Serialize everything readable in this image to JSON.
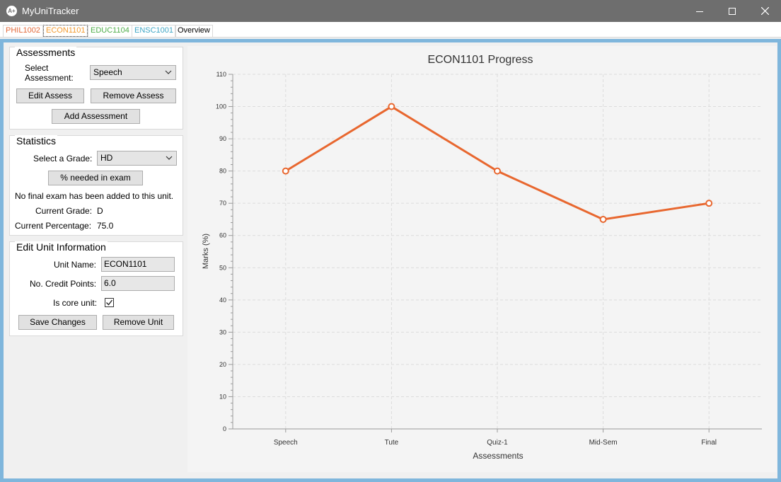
{
  "window": {
    "title": "MyUniTracker",
    "icon_text": "A+"
  },
  "tabs": [
    {
      "label": "PHIL1002",
      "color": "#e3693a"
    },
    {
      "label": "ECON1101",
      "color": "#f29a2e"
    },
    {
      "label": "EDUC1104",
      "color": "#4fae4a"
    },
    {
      "label": "ENSC1001",
      "color": "#3fa6c5"
    },
    {
      "label": "Overview",
      "color": "#000000"
    }
  ],
  "accent_color": "#7fb6dc",
  "assessments": {
    "title": "Assessments",
    "select_label": "Select\nAssessment:",
    "selected": "Speech",
    "edit_label": "Edit Assess",
    "remove_label": "Remove Assess",
    "add_label": "Add Assessment"
  },
  "statistics": {
    "title": "Statistics",
    "grade_label": "Select a Grade:",
    "grade_selected": "HD",
    "needed_label": "% needed in exam",
    "message": "No final exam has been added to this unit.",
    "current_grade_label": "Current Grade:",
    "current_grade": "D",
    "current_pct_label": "Current Percentage:",
    "current_pct": "75.0"
  },
  "unit_info": {
    "title": "Edit Unit Information",
    "name_label": "Unit Name:",
    "name_value": "ECON1101",
    "credits_label": "No. Credit Points:",
    "credits_value": "6.0",
    "core_label": "Is core unit:",
    "is_core": true,
    "save_label": "Save Changes",
    "remove_label": "Remove Unit"
  },
  "chart_data": {
    "type": "line",
    "title": "ECON1101 Progress",
    "xlabel": "Assessments",
    "ylabel": "Marks (%)",
    "categories": [
      "Speech",
      "Tute",
      "Quiz-1",
      "Mid-Sem",
      "Final"
    ],
    "values": [
      80,
      100,
      80,
      65,
      70
    ],
    "ylim": [
      0,
      110
    ],
    "yticks": [
      0,
      10,
      20,
      30,
      40,
      50,
      60,
      70,
      80,
      90,
      100,
      110
    ],
    "grid": true,
    "line_color": "#e8672f"
  }
}
